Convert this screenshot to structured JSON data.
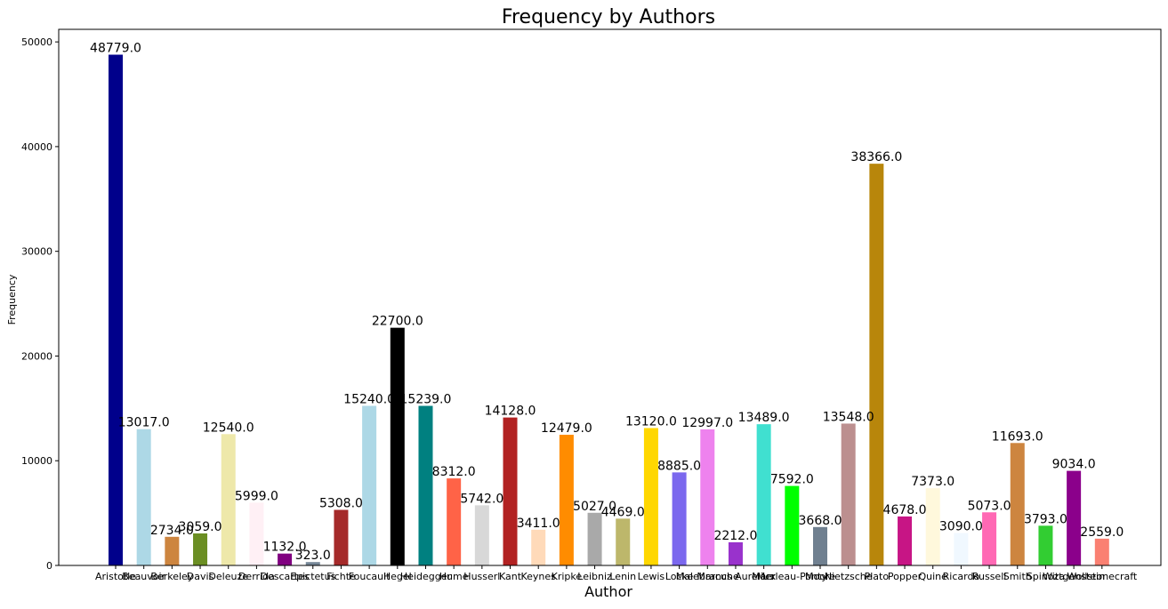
{
  "chart_data": {
    "type": "bar",
    "title": "Frequency by Authors",
    "xlabel": "Author",
    "ylabel": "Frequency",
    "ylim": [
      0,
      51200
    ],
    "yticks": [
      0,
      10000,
      20000,
      30000,
      40000,
      50000
    ],
    "grid": false,
    "categories": [
      "Aristotle",
      "Beauvoir",
      "Berkeley",
      "Davis",
      "Deleuze",
      "Derrida",
      "Descartes",
      "Epictetus",
      "Fichte",
      "Foucault",
      "Hegel",
      "Heidegger",
      "Hume",
      "Husserl",
      "Kant",
      "Keynes",
      "Kripke",
      "Leibniz",
      "Lenin",
      "Lewis",
      "Locke",
      "Malebranche",
      "Marcus Aurelius",
      "Marx",
      "Merleau-Ponty",
      "Moore",
      "Nietzsche",
      "Plato",
      "Popper",
      "Quine",
      "Ricardo",
      "Russell",
      "Smith",
      "Spinoza",
      "Wittgenstein",
      "Wollstonecraft"
    ],
    "values": [
      48779.0,
      13017.0,
      2734.0,
      3059.0,
      12540.0,
      5999.0,
      1132.0,
      323.0,
      5308.0,
      15240.0,
      22700.0,
      15239.0,
      8312.0,
      5742.0,
      14128.0,
      3411.0,
      12479.0,
      5027.0,
      4469.0,
      13120.0,
      8885.0,
      12997.0,
      2212.0,
      13489.0,
      7592.0,
      3668.0,
      13548.0,
      38366.0,
      4678.0,
      7373.0,
      3090.0,
      5073.0,
      11693.0,
      3793.0,
      9034.0,
      2559.0
    ],
    "value_labels": [
      "48779.0",
      "13017.0",
      "2734.0",
      "3059.0",
      "12540.0",
      "5999.0",
      "1132.0",
      "323.0",
      "5308.0",
      "15240.0",
      "22700.0",
      "15239.0",
      "8312.0",
      "5742.0",
      "14128.0",
      "3411.0",
      "12479.0",
      "5027.0",
      "4469.0",
      "13120.0",
      "8885.0",
      "12997.0",
      "2212.0",
      "13489.0",
      "7592.0",
      "3668.0",
      "13548.0",
      "38366.0",
      "4678.0",
      "7373.0",
      "3090.0",
      "5073.0",
      "11693.0",
      "3793.0",
      "9034.0",
      "2559.0"
    ],
    "colors": [
      "#00008b",
      "#add8e6",
      "#cd853f",
      "#6b8e23",
      "#eee8aa",
      "#fff0f5",
      "#800080",
      "#778899",
      "#a52a2a",
      "#add8e6",
      "#000000",
      "#008080",
      "#ff6347",
      "#d8d8d8",
      "#b22222",
      "#ffdab9",
      "#ff8c00",
      "#a9a9a9",
      "#bdb76b",
      "#ffd700",
      "#7b68ee",
      "#ee82ee",
      "#9932cc",
      "#40e0d0",
      "#00ff00",
      "#708090",
      "#bc8f8f",
      "#b8860b",
      "#c71585",
      "#fff8dc",
      "#f0f8ff",
      "#ff69b4",
      "#cd853f",
      "#32cd32",
      "#8b008b",
      "#fa8072"
    ]
  }
}
